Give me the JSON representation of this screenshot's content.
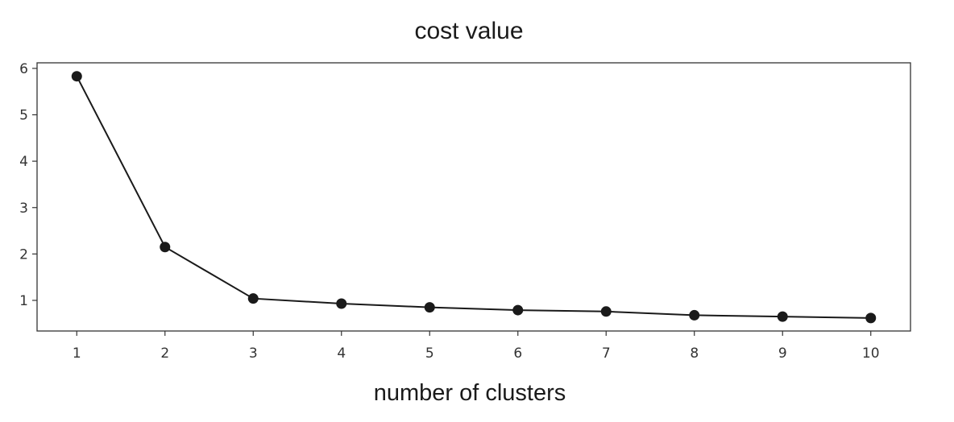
{
  "chart_data": {
    "type": "line",
    "title": "cost value",
    "xlabel": "number of clusters",
    "ylabel": "",
    "x": [
      1,
      2,
      3,
      4,
      5,
      6,
      7,
      8,
      9,
      10
    ],
    "series": [
      {
        "values": [
          5.83,
          2.15,
          1.04,
          0.93,
          0.85,
          0.79,
          0.76,
          0.68,
          0.65,
          0.62
        ]
      }
    ],
    "xticks": [
      "1",
      "2",
      "3",
      "4",
      "5",
      "6",
      "7",
      "8",
      "9",
      "10"
    ],
    "yticks": [
      "1",
      "2",
      "3",
      "4",
      "5",
      "6"
    ],
    "xlim": [
      0.55,
      10.45
    ],
    "ylim": [
      0.34,
      6.12
    ],
    "grid": false,
    "line_color": "#1a1a1a",
    "marker": "circle"
  }
}
